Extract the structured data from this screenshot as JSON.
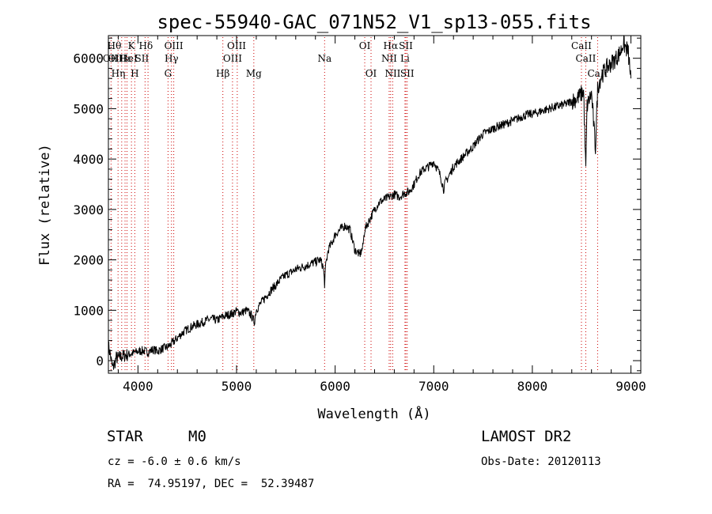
{
  "chart_data": {
    "type": "line",
    "title": "spec-55940-GAC_071N52_V1_sp13-055.fits",
    "xlabel": "Wavelength (Å)",
    "ylabel": "Flux (relative)",
    "xlim": [
      3700,
      9100
    ],
    "ylim": [
      -250,
      6450
    ],
    "xticks": [
      4000,
      5000,
      6000,
      7000,
      8000,
      9000
    ],
    "yticks": [
      0,
      1000,
      2000,
      3000,
      4000,
      5000,
      6000
    ],
    "line_color": "#000000",
    "marker_color": "#cc0000",
    "series": [
      {
        "x": [
          3700,
          3720,
          3740,
          3760,
          3780,
          3800,
          3830,
          3860,
          3900,
          3950,
          4000,
          4050,
          4100,
          4150,
          4200,
          4250,
          4300,
          4350,
          4400,
          4450,
          4500,
          4550,
          4600,
          4650,
          4700,
          4750,
          4800,
          4850,
          4900,
          4950,
          5000,
          5050,
          5100,
          5150,
          5180,
          5200,
          5250,
          5300,
          5350,
          5400,
          5450,
          5500,
          5550,
          5600,
          5650,
          5700,
          5750,
          5800,
          5850,
          5880,
          5893,
          5905,
          5930,
          5970,
          6000,
          6050,
          6100,
          6150,
          6200,
          6250,
          6280,
          6300,
          6350,
          6400,
          6450,
          6500,
          6550,
          6600,
          6650,
          6700,
          6750,
          6800,
          6850,
          6900,
          6950,
          7000,
          7050,
          7070,
          7100,
          7120,
          7150,
          7200,
          7250,
          7300,
          7350,
          7400,
          7450,
          7500,
          7550,
          7600,
          7650,
          7700,
          7750,
          7800,
          7850,
          7900,
          7950,
          8000,
          8050,
          8100,
          8150,
          8200,
          8250,
          8300,
          8350,
          8400,
          8450,
          8480,
          8500,
          8520,
          8542,
          8555,
          8580,
          8600,
          8640,
          8662,
          8675,
          8700,
          8750,
          8800,
          8850,
          8900,
          8920,
          8950,
          8970,
          9000
        ],
        "y": [
          300,
          120,
          -150,
          -80,
          60,
          50,
          80,
          100,
          120,
          150,
          180,
          200,
          170,
          220,
          190,
          240,
          270,
          350,
          450,
          550,
          620,
          680,
          720,
          760,
          800,
          830,
          800,
          860,
          900,
          930,
          980,
          950,
          1000,
          900,
          760,
          1010,
          1150,
          1280,
          1400,
          1500,
          1620,
          1700,
          1750,
          1810,
          1850,
          1880,
          1920,
          1960,
          2000,
          1850,
          1520,
          1900,
          2200,
          2350,
          2500,
          2600,
          2680,
          2600,
          2200,
          2100,
          2250,
          2600,
          2800,
          3000,
          3150,
          3200,
          3250,
          3300,
          3250,
          3320,
          3350,
          3500,
          3700,
          3800,
          3850,
          3950,
          3750,
          3650,
          3400,
          3550,
          3650,
          3850,
          3950,
          4050,
          4150,
          4250,
          4380,
          4500,
          4550,
          4600,
          4650,
          4680,
          4720,
          4760,
          4800,
          4850,
          4880,
          4900,
          4920,
          4960,
          4990,
          5020,
          5040,
          5070,
          5100,
          5150,
          5200,
          5250,
          5300,
          5350,
          3750,
          5050,
          5200,
          5300,
          4200,
          5400,
          5500,
          5650,
          5800,
          5900,
          6000,
          6150,
          6300,
          6200,
          6150,
          5600
        ]
      }
    ],
    "lines": [
      {
        "label": "Hθ",
        "wl": 3798
      },
      {
        "label": "OII",
        "wl": 3727
      },
      {
        "label": "OIII",
        "wl": 3869
      },
      {
        "label": "Hε",
        "wl": 3889
      },
      {
        "label": "Hη",
        "wl": 3835
      },
      {
        "label": "K",
        "wl": 3934
      },
      {
        "label": "HeI",
        "wl": 3889
      },
      {
        "label": "H",
        "wl": 3968
      },
      {
        "label": "Hδ",
        "wl": 4102
      },
      {
        "label": "SII",
        "wl": 4072
      },
      {
        "label": "OIII",
        "wl": 4363
      },
      {
        "label": "Hγ",
        "wl": 4340
      },
      {
        "label": "G",
        "wl": 4305
      },
      {
        "label": "Hβ",
        "wl": 4861
      },
      {
        "label": "OIII",
        "wl": 4959
      },
      {
        "label": "OIII",
        "wl": 5007
      },
      {
        "label": "Mg",
        "wl": 5175
      },
      {
        "label": "Na",
        "wl": 5893
      },
      {
        "label": "OI",
        "wl": 6300
      },
      {
        "label": "OI",
        "wl": 6364
      },
      {
        "label": "Hα",
        "wl": 6563
      },
      {
        "label": "NII",
        "wl": 6548
      },
      {
        "label": "NII",
        "wl": 6584
      },
      {
        "label": "SII",
        "wl": 6717
      },
      {
        "label": "SII",
        "wl": 6731
      },
      {
        "label": "Li",
        "wl": 6708
      },
      {
        "label": "CaII",
        "wl": 8498
      },
      {
        "label": "CaII",
        "wl": 8542
      },
      {
        "label": "CaII",
        "wl": 8662
      }
    ]
  },
  "info": {
    "class": "STAR",
    "subclass": "M0",
    "survey": "LAMOST DR2",
    "velocity": "cz = -6.0 ± 0.6 km/s",
    "obs_date": "Obs-Date: 20120113",
    "coords": "RA =  74.95197, DEC =  52.39487"
  }
}
